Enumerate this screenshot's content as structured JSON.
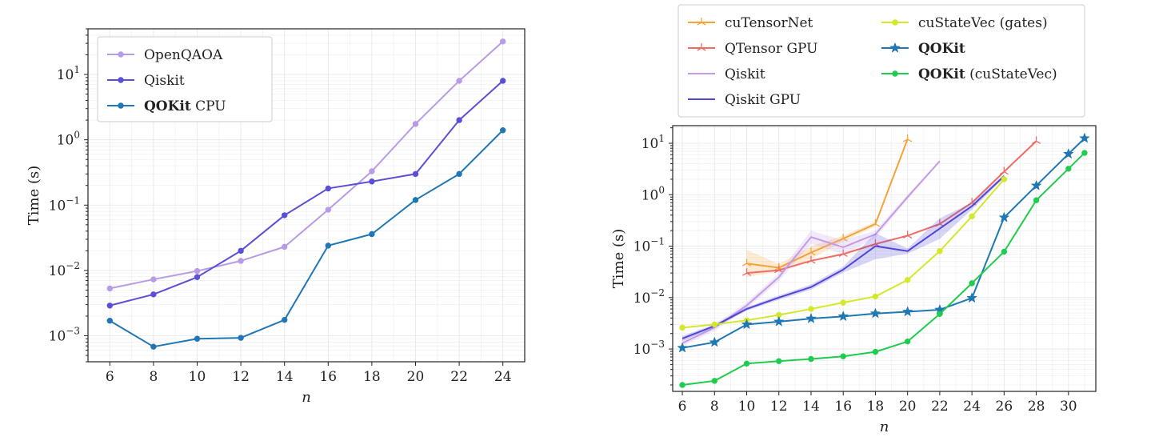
{
  "chart_data": [
    {
      "type": "line",
      "xlabel": "n",
      "ylabel": "Time (s)",
      "yscale": "log",
      "xlim": [
        5,
        25
      ],
      "ylim": [
        0.0004,
        50
      ],
      "x_ticks": [
        6,
        8,
        10,
        12,
        14,
        16,
        18,
        20,
        22,
        24
      ],
      "y_ticks": [
        {
          "value": 0.001,
          "base": "10",
          "exp": "−3"
        },
        {
          "value": 0.01,
          "base": "10",
          "exp": "−2"
        },
        {
          "value": 0.1,
          "base": "10",
          "exp": "−1"
        },
        {
          "value": 1,
          "base": "10",
          "exp": "0"
        },
        {
          "value": 10,
          "base": "10",
          "exp": "1"
        }
      ],
      "grid": true,
      "legend_position": "top-left",
      "series": [
        {
          "name": "OpenQAOA",
          "name_bold": "",
          "name_rest": "OpenQAOA",
          "color": "#b89be6",
          "marker": "circle",
          "x": [
            6,
            8,
            10,
            12,
            14,
            16,
            18,
            20,
            22,
            24
          ],
          "y": [
            0.0053,
            0.0073,
            0.0098,
            0.014,
            0.023,
            0.085,
            0.33,
            1.75,
            8.0,
            32.0
          ]
        },
        {
          "name": "Qiskit",
          "name_bold": "",
          "name_rest": "Qiskit",
          "color": "#5a4fd6",
          "marker": "circle",
          "x": [
            6,
            8,
            10,
            12,
            14,
            16,
            18,
            20,
            22,
            24
          ],
          "y": [
            0.0029,
            0.0043,
            0.0079,
            0.02,
            0.07,
            0.18,
            0.23,
            0.3,
            2.0,
            8.0
          ]
        },
        {
          "name": "QOKit CPU",
          "name_bold": "QOKit",
          "name_rest": " CPU",
          "color": "#1f77b4",
          "marker": "circle",
          "x": [
            6,
            8,
            10,
            12,
            14,
            16,
            18,
            20,
            22,
            24
          ],
          "y": [
            0.0017,
            0.00068,
            0.0009,
            0.00093,
            0.00175,
            0.024,
            0.036,
            0.12,
            0.3,
            1.4
          ]
        }
      ]
    },
    {
      "type": "line",
      "xlabel": "n",
      "ylabel": "Time (s)",
      "yscale": "log",
      "xlim": [
        5.4,
        31.7
      ],
      "ylim": [
        0.00015,
        22
      ],
      "x_ticks": [
        6,
        8,
        10,
        12,
        14,
        16,
        18,
        20,
        22,
        24,
        26,
        28,
        30
      ],
      "y_ticks": [
        {
          "value": 0.001,
          "base": "10",
          "exp": "−3"
        },
        {
          "value": 0.01,
          "base": "10",
          "exp": "−2"
        },
        {
          "value": 0.1,
          "base": "10",
          "exp": "−1"
        },
        {
          "value": 1,
          "base": "10",
          "exp": "0"
        },
        {
          "value": 10,
          "base": "10",
          "exp": "1"
        }
      ],
      "grid": true,
      "legend_position": "above",
      "series": [
        {
          "name": "cuTensorNet",
          "name_bold": "",
          "name_rest": "cuTensorNet",
          "color": "#f5a33a",
          "marker": "tri",
          "x": [
            10,
            12,
            14,
            16,
            18,
            20
          ],
          "y": [
            0.046,
            0.038,
            0.075,
            0.14,
            0.27,
            12.0
          ],
          "band": [
            0.085,
            0.045,
            0.1,
            0.16,
            0.3,
            12.0
          ]
        },
        {
          "name": "QTensor GPU",
          "name_bold": "",
          "name_rest": "QTensor GPU",
          "color": "#ef6b66",
          "marker": "tri",
          "x": [
            10,
            12,
            14,
            16,
            18,
            20,
            22,
            24,
            26,
            28
          ],
          "y": [
            0.03,
            0.034,
            0.052,
            0.07,
            0.11,
            0.16,
            0.27,
            0.7,
            2.8,
            11.0
          ]
        },
        {
          "name": "Qiskit",
          "name_bold": "",
          "name_rest": "Qiskit",
          "color": "#c39be6",
          "marker": "none",
          "x": [
            6,
            8,
            10,
            12,
            14,
            16,
            18,
            20,
            22
          ],
          "y": [
            0.0013,
            0.0026,
            0.007,
            0.025,
            0.15,
            0.095,
            0.17,
            0.9,
            4.5
          ],
          "band": [
            0.0015,
            0.003,
            0.008,
            0.03,
            0.2,
            0.13,
            0.2,
            1.0,
            4.6
          ]
        },
        {
          "name": "Qiskit GPU",
          "name_bold": "",
          "name_rest": "Qiskit GPU",
          "color": "#4f46d6",
          "marker": "none",
          "x": [
            6,
            8,
            10,
            12,
            14,
            16,
            18,
            20,
            22,
            24,
            26
          ],
          "y": [
            0.0016,
            0.0028,
            0.006,
            0.01,
            0.016,
            0.035,
            0.1,
            0.08,
            0.22,
            0.6,
            2.3
          ],
          "band": [
            0.0018,
            0.003,
            0.0065,
            0.011,
            0.018,
            0.04,
            0.18,
            0.09,
            0.35,
            0.7,
            2.5
          ]
        },
        {
          "name": "cuStateVec (gates)",
          "name_bold": "",
          "name_rest": "cuStateVec (gates)",
          "color": "#d4e82b",
          "marker": "circle",
          "x": [
            6,
            8,
            10,
            12,
            14,
            16,
            18,
            20,
            22,
            24,
            26
          ],
          "y": [
            0.0026,
            0.003,
            0.0036,
            0.0046,
            0.006,
            0.008,
            0.0105,
            0.022,
            0.08,
            0.38,
            2.0
          ]
        },
        {
          "name": "QOKit",
          "name_bold": "QOKit",
          "name_rest": "",
          "color": "#1f77b4",
          "marker": "star",
          "x": [
            6,
            8,
            10,
            12,
            14,
            16,
            18,
            20,
            22,
            24,
            26,
            28,
            30,
            31
          ],
          "y": [
            0.00105,
            0.00135,
            0.003,
            0.0034,
            0.0039,
            0.0043,
            0.0049,
            0.0053,
            0.0058,
            0.0098,
            0.36,
            1.5,
            6.2,
            12.5
          ]
        },
        {
          "name": "QOKit (cuStateVec)",
          "name_bold": "QOKit",
          "name_rest": " (cuStateVec)",
          "color": "#1fcc4f",
          "marker": "circle",
          "x": [
            6,
            8,
            10,
            12,
            14,
            16,
            18,
            20,
            22,
            24,
            26,
            28,
            30,
            31
          ],
          "y": [
            0.0002,
            0.00024,
            0.00052,
            0.00058,
            0.00064,
            0.00072,
            0.00088,
            0.0014,
            0.0048,
            0.019,
            0.078,
            0.78,
            3.2,
            6.5
          ]
        }
      ]
    }
  ]
}
